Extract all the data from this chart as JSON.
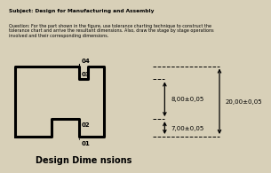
{
  "subject": "Subject: Design for Manufacturing and Assembly",
  "question": "Question: For the part shown in the figure, use tolerance charting technique to construct the\ntolerance chart and arrive the resultant dimensions. Also, draw the stage by stage operations\ninvolved and their corresponding dimensions.",
  "title": "Design Dime nsions",
  "bg_color": "#d8d0b8",
  "dim1": "8,00±0,05",
  "dim2": "20,00±0,05",
  "dim3": "7,00±0,05",
  "labels": [
    "01",
    "02",
    "03",
    "04"
  ]
}
